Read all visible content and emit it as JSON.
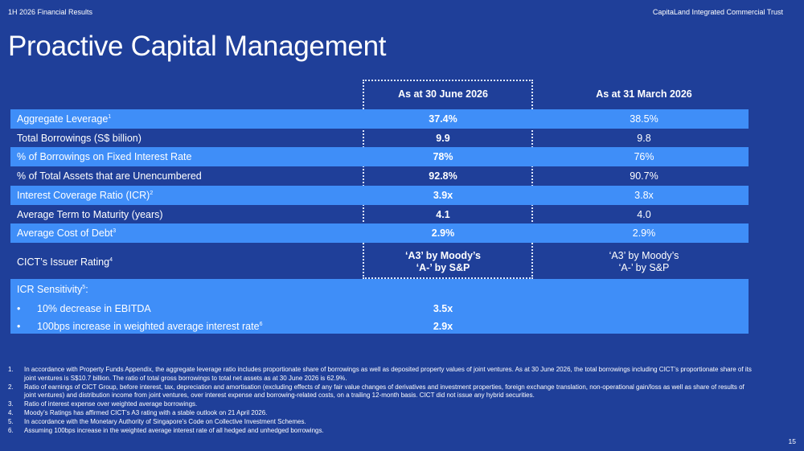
{
  "header": {
    "left": "1H 2026 Financial Results",
    "right": "CapitaLand Integrated Commercial Trust"
  },
  "title": "Proactive Capital Management",
  "columns": [
    "As at 30 June 2026",
    "As at 31 March 2026"
  ],
  "rows": [
    {
      "label": "Aggregate Leverage",
      "sup": "1",
      "v1": "37.4%",
      "v2": "38.5%"
    },
    {
      "label": "Total Borrowings (S$ billion)",
      "sup": "",
      "v1": "9.9",
      "v2": "9.8"
    },
    {
      "label": "% of Borrowings on Fixed Interest Rate",
      "sup": "",
      "v1": "78%",
      "v2": "76%"
    },
    {
      "label": "% of Total Assets that are Unencumbered",
      "sup": "",
      "v1": "92.8%",
      "v2": "90.7%"
    },
    {
      "label": "Interest Coverage Ratio (ICR)",
      "sup": "2",
      "v1": "3.9x",
      "v2": "3.8x"
    },
    {
      "label": "Average Term to Maturity (years)",
      "sup": "",
      "v1": "4.1",
      "v2": "4.0"
    },
    {
      "label": "Average Cost of Debt",
      "sup": "3",
      "v1": "2.9%",
      "v2": "2.9%"
    }
  ],
  "rating": {
    "label": "CICT’s Issuer Rating",
    "sup": "4",
    "v1_line1": "‘A3’ by Moody’s",
    "v1_line2": "‘A-’ by S&P",
    "v2_line1": "‘A3’ by Moody’s",
    "v2_line2": "‘A-’ by S&P"
  },
  "icr_sensitivity": {
    "title": "ICR Sensitivity",
    "title_sup": "5",
    "title_suffix": ":",
    "bullet": "•",
    "items": [
      {
        "text": "10% decrease in EBITDA",
        "sup": "",
        "value": "3.5x"
      },
      {
        "text": "100bps increase in weighted average interest rate",
        "sup": "6",
        "value": "2.9x"
      }
    ]
  },
  "footnotes": [
    {
      "n": "1.",
      "text": "In accordance with Property Funds Appendix, the aggregate leverage ratio includes proportionate share of borrowings as well as deposited property values of joint ventures. As at 30 June 2026, the total borrowings including CICT’s proportionate share of its joint ventures is S$10.7 billion. The ratio of total gross borrowings to total net assets as at 30 June 2026 is 62.9%."
    },
    {
      "n": "2.",
      "text": "Ratio of earnings of CICT Group, before interest, tax, depreciation and amortisation (excluding effects of any fair value changes of derivatives and investment properties, foreign exchange translation, non-operational gain/loss as well as share of results of joint ventures) and distribution income from joint ventures, over interest expense and borrowing-related costs, on a trailing 12-month basis. CICT did not issue any hybrid securities."
    },
    {
      "n": "3.",
      "text": "Ratio of interest expense over weighted average borrowings."
    },
    {
      "n": "4.",
      "text": "Moody’s Ratings has affirmed CICT’s A3 rating with a stable outlook on 21 April 2026."
    },
    {
      "n": "5.",
      "text": "In accordance with the Monetary Authority of Singapore’s Code on Collective Investment Schemes."
    },
    {
      "n": "6.",
      "text": "Assuming 100bps increase in the weighted average interest rate of all hedged and unhedged borrowings."
    }
  ],
  "page_number": "15"
}
